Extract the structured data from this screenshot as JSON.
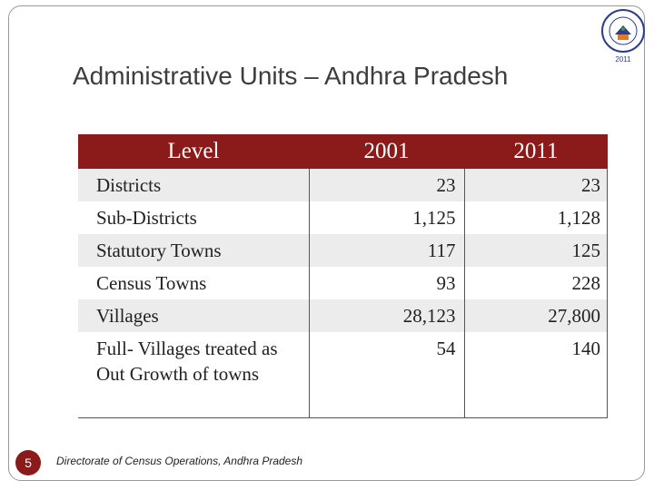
{
  "slide": {
    "title": "Administrative Units – Andhra Pradesh",
    "number": "5",
    "footer": "Directorate of Census Operations, Andhra Pradesh",
    "logo_year": "2011"
  },
  "table": {
    "headers": [
      "Level",
      "2001",
      "2011"
    ],
    "rows": [
      {
        "level": "Districts",
        "y2001": "23",
        "y2011": "23"
      },
      {
        "level": "Sub-Districts",
        "y2001": "1,125",
        "y2011": "1,128"
      },
      {
        "level": "Statutory Towns",
        "y2001": "117",
        "y2011": "125"
      },
      {
        "level": "Census Towns",
        "y2001": "93",
        "y2011": "228"
      },
      {
        "level": "Villages",
        "y2001": "28,123",
        "y2011": "27,800"
      },
      {
        "level": "Full- Villages treated as  Out Growth of towns",
        "y2001": "54",
        "y2011": "140"
      }
    ]
  },
  "colors": {
    "header_bg": "#8b1a1a",
    "row_alt_bg": "#ececec",
    "logo_blue": "#2a3f8f"
  }
}
